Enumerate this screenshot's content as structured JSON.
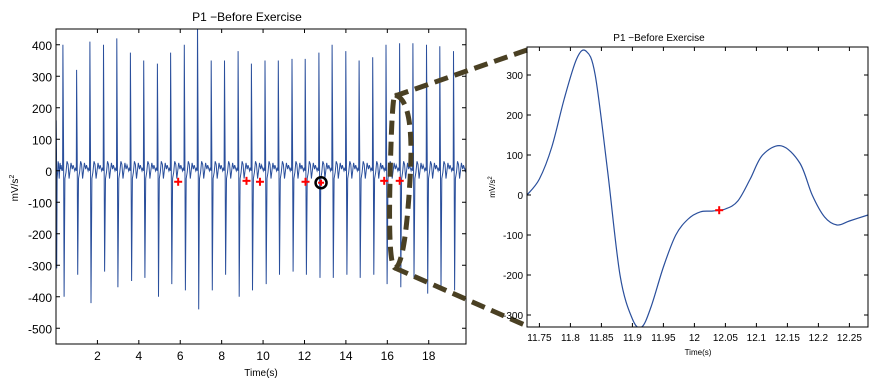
{
  "chart_data": [
    {
      "type": "line",
      "title": "P1 −Before Exercise",
      "xlabel": "Time(s)",
      "ylabel": "mV/s",
      "ylabel_sup": "2",
      "xlim": [
        0,
        19.8
      ],
      "ylim": [
        -550,
        450
      ],
      "xticks": [
        2,
        4,
        6,
        8,
        10,
        12,
        14,
        16,
        18
      ],
      "yticks": [
        -500,
        -400,
        -300,
        -200,
        -100,
        0,
        100,
        200,
        300,
        400
      ],
      "grid": false,
      "line_color": "#2a4f9c",
      "marker_color": "#ff0000",
      "beat_onsets": [
        0.0,
        0.32,
        0.98,
        1.62,
        2.28,
        2.92,
        3.58,
        4.22,
        4.88,
        5.52,
        6.18,
        6.82,
        7.48,
        8.12,
        8.78,
        9.42,
        10.08,
        10.72,
        11.38,
        12.02,
        12.68,
        13.32,
        13.98,
        14.62,
        15.28,
        15.92,
        16.58,
        17.22,
        17.88,
        18.52,
        19.18
      ],
      "beat_peaks": [
        160,
        400,
        320,
        410,
        400,
        420,
        375,
        350,
        340,
        375,
        400,
        480,
        350,
        350,
        380,
        340,
        350,
        350,
        355,
        355,
        375,
        400,
        380,
        350,
        360,
        400,
        405,
        405,
        400,
        395,
        380
      ],
      "beat_troughs": [
        -310,
        -400,
        -330,
        -420,
        -320,
        -370,
        -350,
        -340,
        -400,
        -360,
        -380,
        -440,
        -380,
        -330,
        -400,
        -380,
        -360,
        -330,
        -320,
        -330,
        -340,
        -340,
        -330,
        -340,
        -330,
        -360,
        -370,
        -340,
        -390,
        -380,
        -380
      ],
      "markers": [
        {
          "x": 5.9,
          "y": -35
        },
        {
          "x": 9.2,
          "y": -32
        },
        {
          "x": 9.85,
          "y": -35
        },
        {
          "x": 12.05,
          "y": -35
        },
        {
          "x": 15.85,
          "y": -32
        },
        {
          "x": 16.6,
          "y": -32
        }
      ],
      "highlight_marker": {
        "x": 12.8,
        "y": -38
      }
    },
    {
      "type": "line",
      "title": "P1 −Before Exercise",
      "xlabel": "Time(s)",
      "ylabel": "mV/s",
      "ylabel_sup": "2",
      "xlim": [
        11.73,
        12.28
      ],
      "ylim": [
        -330,
        370
      ],
      "xticks": [
        11.75,
        11.8,
        11.85,
        11.9,
        11.95,
        12,
        12.05,
        12.1,
        12.15,
        12.2,
        12.25
      ],
      "yticks": [
        -300,
        -200,
        -100,
        0,
        100,
        200,
        300
      ],
      "grid": false,
      "line_color": "#2a4f9c",
      "marker_color": "#ff0000",
      "x": [
        11.73,
        11.75,
        11.77,
        11.79,
        11.81,
        11.825,
        11.84,
        11.86,
        11.88,
        11.9,
        11.915,
        11.93,
        11.95,
        11.97,
        11.99,
        12.01,
        12.03,
        12.05,
        12.07,
        12.09,
        12.11,
        12.14,
        12.17,
        12.19,
        12.21,
        12.23,
        12.25,
        12.28
      ],
      "y": [
        0,
        40,
        120,
        240,
        340,
        360,
        300,
        60,
        -200,
        -310,
        -330,
        -280,
        -180,
        -100,
        -60,
        -42,
        -40,
        -35,
        -15,
        40,
        100,
        123,
        80,
        0,
        -55,
        -75,
        -65,
        -50
      ],
      "markers": [
        {
          "x": 12.04,
          "y": -38
        }
      ]
    }
  ]
}
